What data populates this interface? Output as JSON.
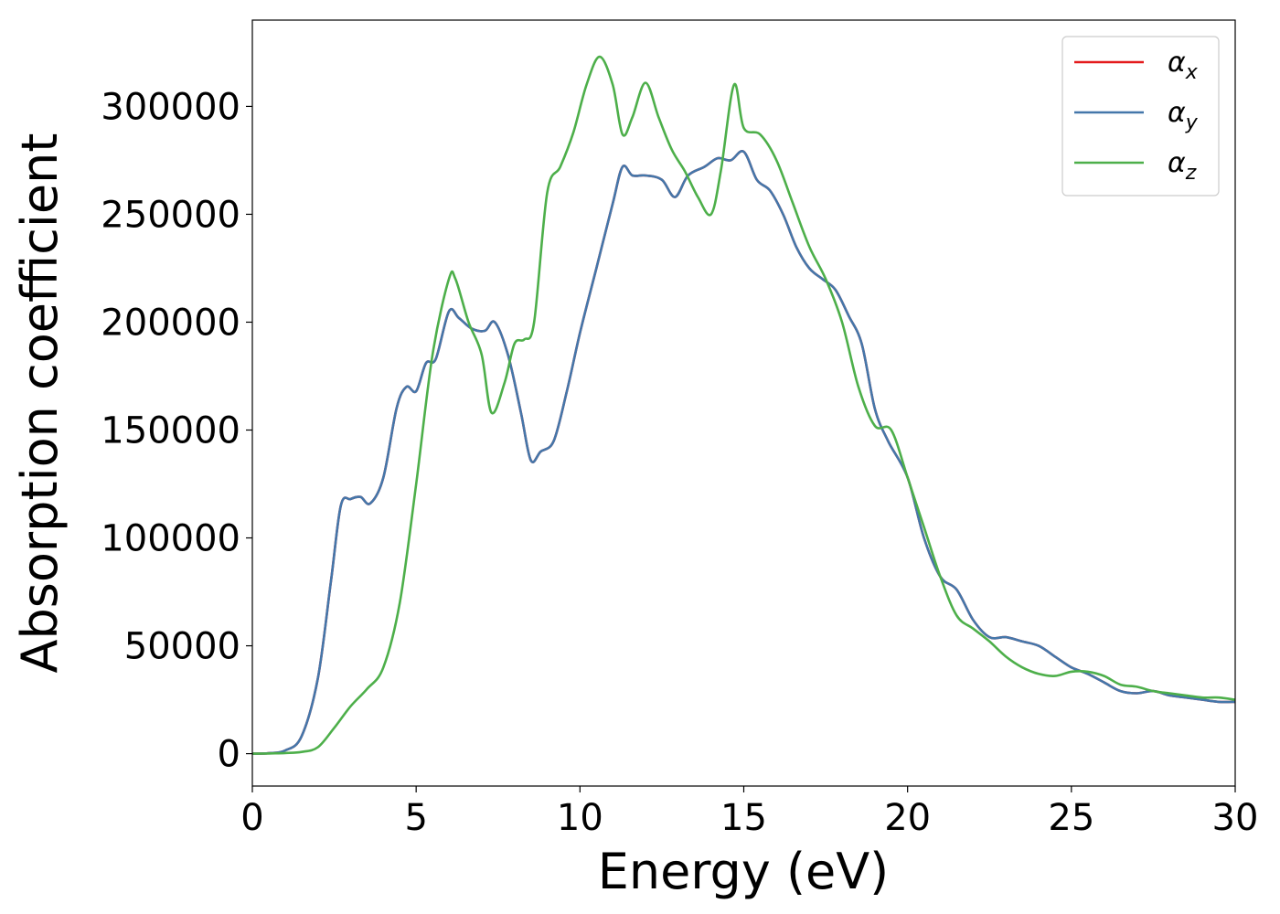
{
  "chart_data": {
    "type": "line",
    "title": "",
    "xlabel": "Energy (eV)",
    "ylabel": "Absorption coefficient",
    "xlim": [
      0,
      30
    ],
    "ylim": [
      -15000,
      340000
    ],
    "x_ticks": [
      0,
      5,
      10,
      15,
      20,
      25,
      30
    ],
    "y_ticks": [
      0,
      50000,
      100000,
      150000,
      200000,
      250000,
      300000
    ],
    "grid": false,
    "legend_position": "top-right",
    "series": [
      {
        "name": "α",
        "subscript": "x",
        "color": "#e41a1c",
        "x": [
          0,
          0.5,
          1,
          1.5,
          2,
          2.4,
          2.7,
          3,
          3.3,
          3.6,
          4,
          4.4,
          4.7,
          5,
          5.3,
          5.6,
          6,
          6.3,
          6.7,
          7.1,
          7.4,
          7.8,
          8.2,
          8.5,
          8.8,
          9.2,
          9.6,
          10,
          10.5,
          11,
          11.3,
          11.6,
          12,
          12.5,
          12.9,
          13.3,
          13.8,
          14.2,
          14.6,
          15,
          15.4,
          15.8,
          16.2,
          16.6,
          17,
          17.4,
          17.8,
          18.2,
          18.6,
          19,
          19.4,
          20,
          20.5,
          21,
          21.5,
          22,
          22.5,
          23,
          23.5,
          24,
          24.5,
          25,
          25.5,
          26,
          26.5,
          27,
          27.5,
          28,
          28.5,
          29,
          29.5,
          30
        ],
        "values": [
          0,
          200,
          1500,
          8000,
          35000,
          80000,
          115000,
          118000,
          119000,
          116000,
          128000,
          160000,
          170000,
          168000,
          181000,
          183000,
          205000,
          202000,
          197000,
          196000,
          200000,
          185000,
          158000,
          136000,
          140000,
          145000,
          168000,
          195000,
          225000,
          255000,
          272000,
          268000,
          268000,
          266000,
          258000,
          268000,
          272000,
          276000,
          275000,
          279000,
          266000,
          261000,
          250000,
          235000,
          225000,
          220000,
          215000,
          203000,
          190000,
          160000,
          145000,
          128000,
          100000,
          82000,
          76000,
          62000,
          54000,
          54000,
          52000,
          50000,
          45000,
          40000,
          37000,
          33000,
          29000,
          28000,
          29000,
          27000,
          26000,
          25000,
          24000,
          24000
        ]
      },
      {
        "name": "α",
        "subscript": "y",
        "color": "#4477aa",
        "x": [
          0,
          0.5,
          1,
          1.5,
          2,
          2.4,
          2.7,
          3,
          3.3,
          3.6,
          4,
          4.4,
          4.7,
          5,
          5.3,
          5.6,
          6,
          6.3,
          6.7,
          7.1,
          7.4,
          7.8,
          8.2,
          8.5,
          8.8,
          9.2,
          9.6,
          10,
          10.5,
          11,
          11.3,
          11.6,
          12,
          12.5,
          12.9,
          13.3,
          13.8,
          14.2,
          14.6,
          15,
          15.4,
          15.8,
          16.2,
          16.6,
          17,
          17.4,
          17.8,
          18.2,
          18.6,
          19,
          19.4,
          20,
          20.5,
          21,
          21.5,
          22,
          22.5,
          23,
          23.5,
          24,
          24.5,
          25,
          25.5,
          26,
          26.5,
          27,
          27.5,
          28,
          28.5,
          29,
          29.5,
          30
        ],
        "values": [
          0,
          200,
          1500,
          8000,
          35000,
          80000,
          115000,
          118000,
          119000,
          116000,
          128000,
          160000,
          170000,
          168000,
          181000,
          183000,
          205000,
          202000,
          197000,
          196000,
          200000,
          185000,
          158000,
          136000,
          140000,
          145000,
          168000,
          195000,
          225000,
          255000,
          272000,
          268000,
          268000,
          266000,
          258000,
          268000,
          272000,
          276000,
          275000,
          279000,
          266000,
          261000,
          250000,
          235000,
          225000,
          220000,
          215000,
          203000,
          190000,
          160000,
          145000,
          128000,
          100000,
          82000,
          76000,
          62000,
          54000,
          54000,
          52000,
          50000,
          45000,
          40000,
          37000,
          33000,
          29000,
          28000,
          29000,
          27000,
          26000,
          25000,
          24000,
          24000
        ]
      },
      {
        "name": "α",
        "subscript": "z",
        "color": "#4daf4a",
        "x": [
          0,
          0.5,
          1,
          1.5,
          2,
          2.5,
          3,
          3.5,
          4,
          4.5,
          5,
          5.5,
          6,
          6.2,
          6.6,
          7,
          7.3,
          7.7,
          8,
          8.3,
          8.6,
          9,
          9.4,
          9.8,
          10.2,
          10.6,
          11,
          11.3,
          11.6,
          12,
          12.4,
          12.8,
          13.2,
          13.6,
          14,
          14.3,
          14.7,
          15,
          15.5,
          16,
          16.5,
          17,
          17.5,
          18,
          18.5,
          19,
          19.5,
          20,
          20.5,
          21,
          21.5,
          22,
          22.5,
          23,
          23.5,
          24,
          24.5,
          25,
          25.5,
          26,
          26.5,
          27,
          27.5,
          28,
          28.5,
          29,
          29.5,
          30
        ],
        "values": [
          0,
          100,
          300,
          800,
          3000,
          12000,
          22000,
          30000,
          40000,
          70000,
          125000,
          185000,
          220000,
          220000,
          200000,
          185000,
          158000,
          172000,
          190000,
          192000,
          200000,
          260000,
          272000,
          288000,
          310000,
          323000,
          310000,
          287000,
          295000,
          311000,
          295000,
          280000,
          270000,
          258000,
          250000,
          270000,
          310000,
          290000,
          287000,
          275000,
          255000,
          235000,
          220000,
          200000,
          170000,
          152000,
          150000,
          128000,
          105000,
          82000,
          64000,
          58000,
          52000,
          45000,
          40000,
          37000,
          36000,
          38000,
          38000,
          36000,
          32000,
          31000,
          29000,
          28000,
          27000,
          26000,
          26000,
          25000
        ]
      }
    ]
  }
}
